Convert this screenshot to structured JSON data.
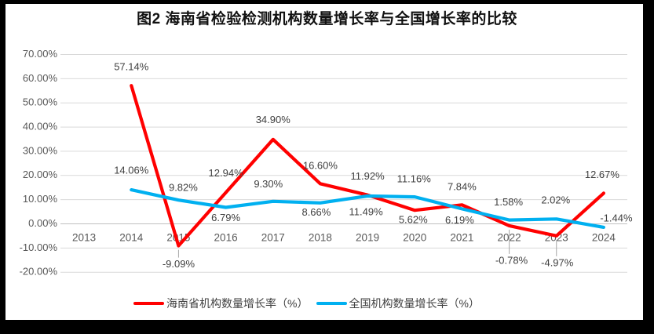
{
  "title": "图2 海南省检验检测机构数量增长率与全国增长率的比较",
  "chart_data": {
    "type": "line",
    "title": "图2 海南省检验检测机构数量增长率与全国增长率的比较",
    "categories": [
      "2013",
      "2014",
      "2015",
      "2016",
      "2017",
      "2018",
      "2019",
      "2020",
      "2021",
      "2022",
      "2023",
      "2024"
    ],
    "series": [
      {
        "name": "海南省机构数量增长率（%）",
        "color": "#FF0000",
        "values": [
          null,
          57.14,
          -9.09,
          12.94,
          34.9,
          16.6,
          11.92,
          5.62,
          7.84,
          -0.78,
          -4.97,
          12.67
        ],
        "label_offsets": [
          null,
          [
            0,
            -23,
            false
          ],
          [
            0,
            24,
            true
          ],
          [
            0,
            -24,
            false
          ],
          [
            0,
            -24,
            false
          ],
          [
            0,
            -22,
            false
          ],
          [
            0,
            -23,
            false
          ],
          [
            -2,
            13,
            false
          ],
          [
            0,
            -22,
            false
          ],
          [
            3,
            45,
            true
          ],
          [
            1,
            35,
            true
          ],
          [
            -2,
            -23,
            false
          ]
        ]
      },
      {
        "name": "全国机构数量增长率（%）",
        "color": "#00B0F0",
        "values": [
          null,
          14.06,
          9.82,
          6.79,
          9.3,
          8.66,
          11.49,
          11.16,
          6.19,
          1.58,
          2.02,
          -1.44
        ],
        "label_offsets": [
          null,
          [
            0,
            -24,
            false
          ],
          [
            6,
            -15,
            false
          ],
          [
            0,
            14,
            false
          ],
          [
            -6,
            -21,
            false
          ],
          [
            -5,
            13,
            false
          ],
          [
            -2,
            21,
            false
          ],
          [
            -1,
            -22,
            false
          ],
          [
            -3,
            15,
            false
          ],
          [
            -1,
            -22,
            false
          ],
          [
            -1,
            -23,
            false
          ],
          [
            16,
            -11,
            false
          ]
        ]
      }
    ],
    "ylim": [
      -20,
      70
    ],
    "ytick_step": 10,
    "ytick_format": "0.00%",
    "value_label_format": "0.00%",
    "grid": true,
    "legend_position": "bottom",
    "colors": {
      "background": "#FFFFFF",
      "frame": "#000000",
      "gridline": "#D9D9D9",
      "zero_axis": "#BFBFBF",
      "tick_label": "#595959",
      "data_label": "#404040",
      "leader_line": "#A6A6A6",
      "title_text": "#111111"
    }
  }
}
